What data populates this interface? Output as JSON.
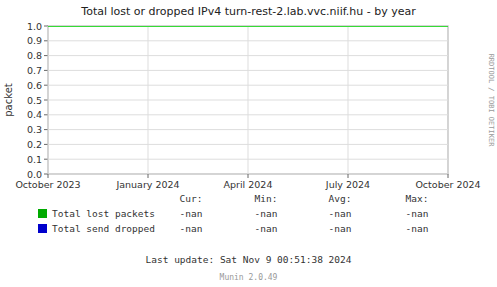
{
  "chart_data": {
    "type": "line",
    "title": "Total lost or dropped IPv4 turn-rest-2.lab.vvc.niif.hu - by year",
    "y_label": "packet",
    "categories": [
      "October 2023",
      "January 2024",
      "April 2024",
      "July 2024",
      "October 2024"
    ],
    "series": [
      {
        "name": "Total lost packets",
        "color": "#00aa00",
        "values": [
          null,
          null,
          null,
          null,
          null
        ],
        "stats": [
          "-nan",
          "-nan",
          "-nan",
          "-nan"
        ]
      },
      {
        "name": "Total send dropped",
        "color": "#0000cc",
        "values": [
          null,
          null,
          null,
          null,
          null
        ],
        "stats": [
          "-nan",
          "-nan",
          "-nan",
          "-nan"
        ]
      }
    ],
    "stats_headers": [
      "Cur:",
      "Min:",
      "Avg:",
      "Max:"
    ],
    "reference_line": {
      "value": 1.0,
      "color": "#00dd00"
    },
    "ylim": [
      0.0,
      1.0
    ],
    "yticks": [
      {
        "value": 0.0,
        "label": "0.0"
      },
      0.1,
      0.2,
      0.3,
      0.4,
      0.5,
      0.6,
      0.7,
      0.8,
      0.9,
      {
        "value": 1.0,
        "label": "1.0"
      }
    ],
    "grid": true,
    "annotations": [
      "RRDTOOL / TOBI OETIKER",
      "Last update: Sat Nov  9 00:51:38 2024",
      "Munin 2.0.49"
    ]
  }
}
